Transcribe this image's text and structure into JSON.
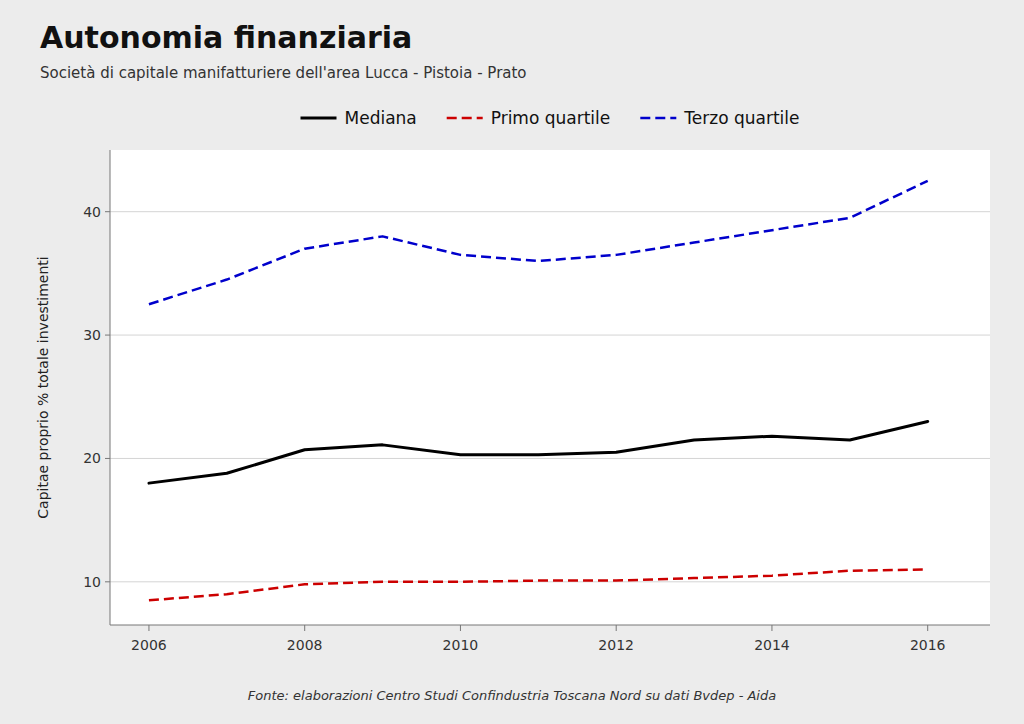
{
  "chart_data": {
    "type": "line",
    "title": "Autonomia finanziaria",
    "subtitle": "Società di capitale manifatturiere dell'area Lucca - Pistoia - Prato",
    "footer": "Fonte: elaborazioni Centro Studi Confindustria Toscana Nord su dati Bvdep - Aida",
    "ylabel": "Capitae proprio % totale investimenti",
    "x": [
      2006,
      2007,
      2008,
      2009,
      2010,
      2011,
      2012,
      2013,
      2014,
      2015,
      2016
    ],
    "series": [
      {
        "name": "Mediana",
        "color": "#000000",
        "line_style": "solid",
        "values": [
          18.0,
          18.8,
          20.7,
          21.1,
          20.3,
          20.3,
          20.5,
          21.5,
          21.8,
          21.5,
          23.0
        ]
      },
      {
        "name": "Primo quartile",
        "color": "#cc0000",
        "line_style": "dashed",
        "values": [
          8.5,
          9.0,
          9.8,
          10.0,
          10.0,
          10.1,
          10.1,
          10.3,
          10.5,
          10.9,
          11.0
        ]
      },
      {
        "name": "Terzo quartile",
        "color": "#0000cc",
        "line_style": "dashed",
        "values": [
          32.5,
          34.5,
          37.0,
          38.0,
          36.5,
          36.0,
          36.5,
          37.5,
          38.5,
          39.5,
          42.5
        ]
      }
    ],
    "xlim": [
      2005.5,
      2016.8
    ],
    "ylim": [
      6.5,
      45.0
    ],
    "xticks": [
      2006,
      2008,
      2010,
      2012,
      2014,
      2016
    ],
    "yticks": [
      10,
      20,
      30,
      40
    ],
    "grid": "y",
    "legend": "top"
  }
}
